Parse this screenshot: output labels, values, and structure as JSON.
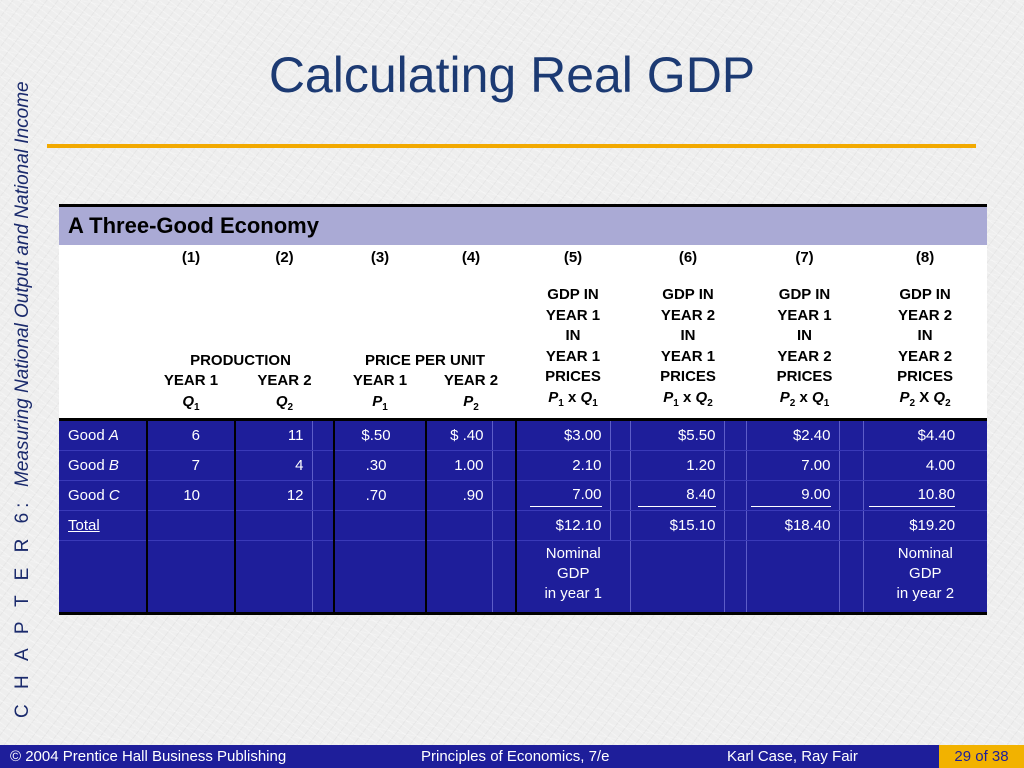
{
  "sidebar": {
    "chapter": "C H A P T E R  6:",
    "subtitle": "Measuring National Output and National Income"
  },
  "title": "Calculating Real GDP",
  "table": {
    "caption": "A Three-Good Economy",
    "column_numbers": [
      "(1)",
      "(2)",
      "(3)",
      "(4)",
      "(5)",
      "(6)",
      "(7)",
      "(8)"
    ],
    "production_header": "PRODUCTION",
    "price_header": "PRICE PER UNIT",
    "year1": "YEAR 1",
    "year2": "YEAR 2",
    "gdp": {
      "col5": [
        "GDP IN",
        "YEAR 1",
        "IN",
        "YEAR 1",
        "PRICES"
      ],
      "col6": [
        "GDP IN",
        "YEAR 2",
        "IN",
        "YEAR 1",
        "PRICES"
      ],
      "col7": [
        "GDP IN",
        "YEAR 1",
        "IN",
        "YEAR 2",
        "PRICES"
      ],
      "col8": [
        "GDP IN",
        "YEAR 2",
        "IN",
        "YEAR 2",
        "PRICES"
      ]
    },
    "rows": [
      {
        "label": "Good",
        "letter": "A",
        "values": [
          "6",
          "11",
          "$.50",
          "$  .40",
          "$3.00",
          "$5.50",
          "$2.40",
          "$4.40"
        ]
      },
      {
        "label": "Good",
        "letter": "B",
        "values": [
          "7",
          "4",
          ".30",
          "1.00",
          "2.10",
          "1.20",
          "7.00",
          "4.00"
        ]
      },
      {
        "label": "Good",
        "letter": "C",
        "values": [
          "10",
          "12",
          ".70",
          ".90",
          "7.00",
          "8.40",
          "9.00",
          "10.80"
        ]
      }
    ],
    "total": {
      "label": "Total",
      "values": [
        "$12.10",
        "$15.10",
        "$18.40",
        "$19.20"
      ]
    },
    "notes": {
      "col5": [
        "Nominal",
        "GDP",
        "in year 1"
      ],
      "col8": [
        "Nominal",
        "GDP",
        "in year 2"
      ]
    }
  },
  "footer": {
    "copyright": "© 2004 Prentice Hall Business Publishing",
    "book": "Principles of Economics, 7/e",
    "authors": "Karl Case, Ray Fair",
    "page": "29 of 38"
  }
}
